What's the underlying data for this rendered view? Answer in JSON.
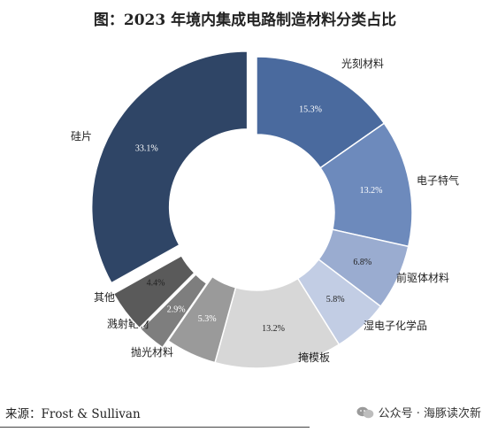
{
  "title": "图：2023 年境内集成电路制造材料分类占比",
  "chart_data": {
    "type": "pie",
    "subtype": "donut",
    "slices": [
      {
        "label": "光刻材料",
        "value": 15.3,
        "value_label": "15.3%",
        "color": "#4a6a9e"
      },
      {
        "label": "电子特气",
        "value": 13.2,
        "value_label": "13.2%",
        "color": "#6d8abc"
      },
      {
        "label": "前驱体材料",
        "value": 6.8,
        "value_label": "6.8%",
        "color": "#9aacd0"
      },
      {
        "label": "湿电子化学品",
        "value": 5.8,
        "value_label": "5.8%",
        "color": "#c2cde4"
      },
      {
        "label": "掩模板",
        "value": 13.2,
        "value_label": "13.2%",
        "color": "#d7d7d7"
      },
      {
        "label": "抛光材料",
        "value": 5.3,
        "value_label": "5.3%",
        "color": "#9a9a9a"
      },
      {
        "label": "溅射靶材",
        "value": 2.9,
        "value_label": "2.9%",
        "color": "#7e7e7e"
      },
      {
        "label": "其他",
        "value": 4.4,
        "value_label": "4.4%",
        "color": "#5a5a5a"
      },
      {
        "label": "硅片",
        "value": 33.1,
        "value_label": "33.1%",
        "color": "#2f4566"
      }
    ],
    "start": "12 o'clock, clockwise",
    "exploded": [
      "溅射靶材",
      "其他",
      "硅片"
    ]
  },
  "source": "来源：Frost & Sullivan",
  "watermark": "公众号 · 海豚读次新"
}
